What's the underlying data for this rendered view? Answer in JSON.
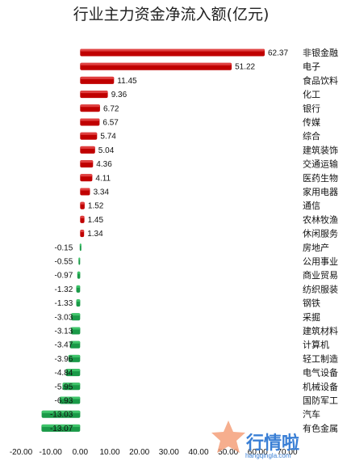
{
  "chart_data": {
    "type": "bar",
    "orientation": "horizontal",
    "title": "行业主力资金净流入额(亿元)",
    "categories": [
      "非银金融",
      "电子",
      "食品饮料",
      "化工",
      "银行",
      "传媒",
      "综合",
      "建筑装饰",
      "交通运输",
      "医药生物",
      "家用电器",
      "通信",
      "农林牧渔",
      "休闲服务",
      "房地产",
      "公用事业",
      "商业贸易",
      "纺织服装",
      "钢铁",
      "采掘",
      "建筑材料",
      "计算机",
      "轻工制造",
      "电气设备",
      "机械设备",
      "国防军工",
      "汽车",
      "有色金属"
    ],
    "values": [
      62.37,
      51.22,
      11.45,
      9.36,
      6.72,
      6.57,
      5.74,
      5.04,
      4.36,
      4.11,
      3.34,
      1.52,
      1.45,
      1.34,
      -0.15,
      -0.55,
      -0.97,
      -1.32,
      -1.33,
      -3.03,
      -3.13,
      -3.47,
      -3.96,
      -4.84,
      -5.95,
      -6.93,
      -13.03,
      -13.07
    ],
    "value_labels": [
      "62.37",
      "51.22",
      "11.45",
      "9.36",
      "6.72",
      "6.57",
      "5.74",
      "5.04",
      "4.36",
      "4.11",
      "3.34",
      "1.52",
      "1.45",
      "1.34",
      "-0.15",
      "-0.55",
      "-0.97",
      "-1.32",
      "-1.33",
      "-3.03",
      "-3.13",
      "-3.47",
      "-3.96",
      "-4.84",
      "-5.95",
      "-6.93",
      "-13.03",
      "-13.07"
    ],
    "xlim": [
      -20,
      70
    ],
    "xticks": [
      "-20.00",
      "-10.00",
      "0.00",
      "10.00",
      "20.00",
      "30.00",
      "40.00",
      "50.00",
      "60.00",
      "70.00"
    ],
    "xtick_values": [
      -20,
      -10,
      0,
      10,
      20,
      30,
      40,
      50,
      60,
      70
    ],
    "grid": false,
    "colors": {
      "positive": "#c00000",
      "positive_top": "#e04040",
      "negative": "#1a9a48",
      "negative_top": "#3fc46a"
    }
  },
  "watermark": {
    "text": "行情啦",
    "subtext": "hangqingla.com"
  }
}
